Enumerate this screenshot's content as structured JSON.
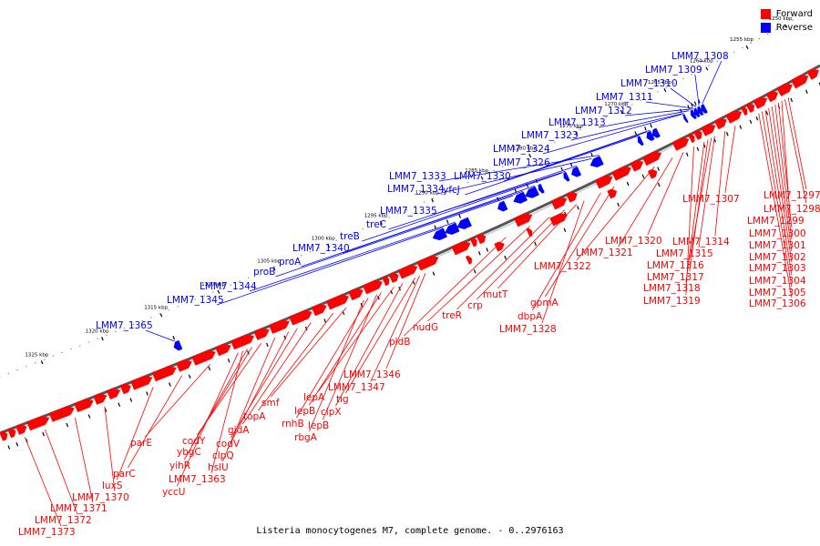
{
  "legend": [
    {
      "label": "Forward",
      "color": "#ff0000"
    },
    {
      "label": "Reverse",
      "color": "#0000ff"
    }
  ],
  "caption": "Listeria monocytogenes M7, complete genome. - 0..2976163",
  "colors": {
    "forward": "#ff0000",
    "reverse": "#0000ff",
    "line": "#555555",
    "axis": "#808080"
  },
  "kbp_ticks": [
    "1250 kbp",
    "1255 kbp",
    "1260 kbp",
    "1265 kbp",
    "1270 kbp",
    "1275 kbp",
    "1280 kbp",
    "1285 kbp",
    "1290 kbp",
    "1295 kbp",
    "1300 kbp",
    "1305 kbp",
    "1310 kbp",
    "1315 kbp",
    "1320 kbp",
    "1325 kbp"
  ],
  "forward_labels": [
    "LMM7_1297",
    "LMM7_1298",
    "LMM7_1299",
    "LMM7_1300",
    "LMM7_1301",
    "LMM7_1302",
    "LMM7_1303",
    "LMM7_1304",
    "LMM7_1305",
    "LMM7_1306",
    "LMM7_1307",
    "LMM7_1314",
    "LMM7_1315",
    "LMM7_1316",
    "LMM7_1317",
    "LMM7_1318",
    "LMM7_1319",
    "LMM7_1320",
    "LMM7_1321",
    "LMM7_1322",
    "gpmA",
    "dbpA",
    "LMM7_1328",
    "mutT",
    "crp",
    "treR",
    "nudG",
    "pldB",
    "LMM7_1346",
    "LMM7_1347",
    "tig",
    "clpX",
    "lepA",
    "lepB",
    "lepB",
    "rnhB",
    "rbgA",
    "smf",
    "topA",
    "gidA",
    "codV",
    "clpQ",
    "hslU",
    "codY",
    "ybgC",
    "yihR",
    "LMM7_1363",
    "yccU",
    "parE",
    "parC",
    "luxS",
    "LMM7_1370",
    "LMM7_1371",
    "LMM7_1372",
    "LMM7_1373"
  ],
  "reverse_labels": [
    "LMM7_1308",
    "LMM7_1309",
    "LMM7_1310",
    "LMM7_1311",
    "LMM7_1312",
    "LMM7_1313",
    "LMM7_1323",
    "LMM7_1324",
    "LMM7_1326",
    "LMM7_1330",
    "yfcJ",
    "LMM7_1333",
    "LMM7_1334",
    "LMM7_1335",
    "treC",
    "treB",
    "LMM7_1340",
    "proA",
    "proB",
    "LMM7_1344",
    "LMM7_1345",
    "LMM7_1365"
  ]
}
